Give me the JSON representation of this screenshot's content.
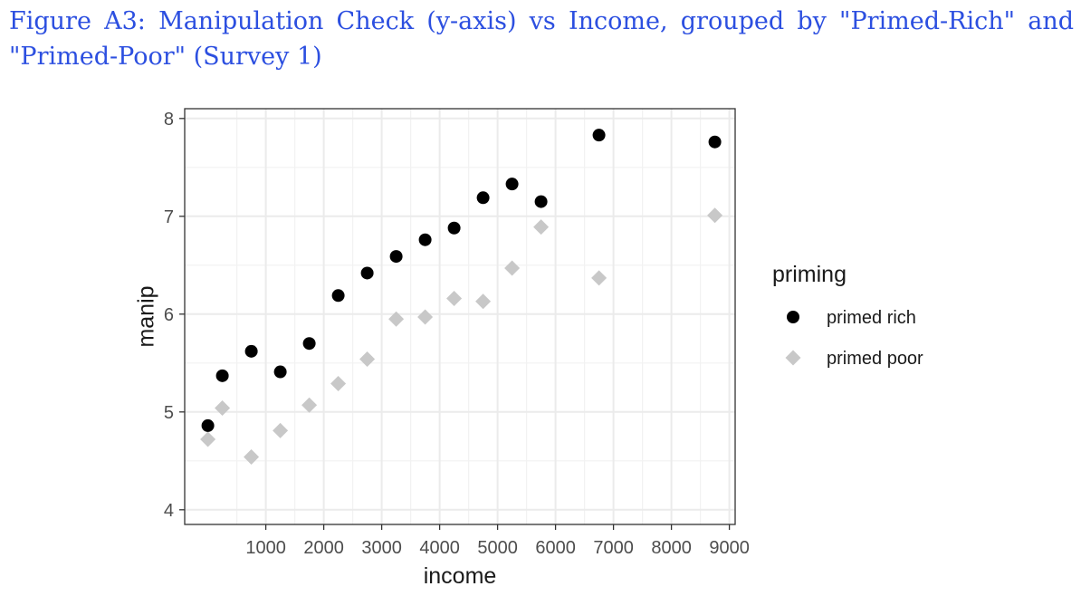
{
  "figure": {
    "caption": "Figure A3:  Manipulation Check (y-axis) vs Income, grouped by \"Primed-Rich\" and \"Primed-Poor\" (Survey 1)"
  },
  "chart_data": {
    "type": "scatter",
    "xlabel": "income",
    "ylabel": "manip",
    "xlim": [
      -400,
      9100
    ],
    "ylim": [
      3.85,
      8.1
    ],
    "x_ticks": [
      1000,
      2000,
      3000,
      4000,
      5000,
      6000,
      7000,
      8000,
      9000
    ],
    "x_minor_ticks": [
      500,
      1500,
      2500,
      3500,
      4500,
      5500,
      6500,
      7500,
      8500
    ],
    "y_ticks": [
      4,
      5,
      6,
      7,
      8
    ],
    "y_minor_ticks": [
      4.5,
      5.5,
      6.5,
      7.5
    ],
    "grid": true,
    "legend": {
      "title": "priming",
      "position": "right"
    },
    "series": [
      {
        "name": "primed rich",
        "marker": "circle",
        "color": "#000000",
        "points": [
          {
            "x": 0,
            "y": 4.86
          },
          {
            "x": 250,
            "y": 5.37
          },
          {
            "x": 750,
            "y": 5.62
          },
          {
            "x": 1250,
            "y": 5.41
          },
          {
            "x": 1750,
            "y": 5.7
          },
          {
            "x": 2250,
            "y": 6.19
          },
          {
            "x": 2750,
            "y": 6.42
          },
          {
            "x": 3250,
            "y": 6.59
          },
          {
            "x": 3750,
            "y": 6.76
          },
          {
            "x": 4250,
            "y": 6.88
          },
          {
            "x": 4750,
            "y": 7.19
          },
          {
            "x": 5250,
            "y": 7.33
          },
          {
            "x": 5750,
            "y": 7.15
          },
          {
            "x": 6750,
            "y": 7.83
          },
          {
            "x": 8750,
            "y": 7.76
          }
        ]
      },
      {
        "name": "primed poor",
        "marker": "diamond",
        "color": "#c8c8c8",
        "points": [
          {
            "x": 0,
            "y": 4.72
          },
          {
            "x": 250,
            "y": 5.04
          },
          {
            "x": 750,
            "y": 4.54
          },
          {
            "x": 1250,
            "y": 4.81
          },
          {
            "x": 1750,
            "y": 5.07
          },
          {
            "x": 2250,
            "y": 5.29
          },
          {
            "x": 2750,
            "y": 5.54
          },
          {
            "x": 3250,
            "y": 5.95
          },
          {
            "x": 3750,
            "y": 5.97
          },
          {
            "x": 4250,
            "y": 6.16
          },
          {
            "x": 4750,
            "y": 6.13
          },
          {
            "x": 5250,
            "y": 6.47
          },
          {
            "x": 5750,
            "y": 6.89
          },
          {
            "x": 6750,
            "y": 6.37
          },
          {
            "x": 8750,
            "y": 7.01
          }
        ]
      }
    ]
  }
}
